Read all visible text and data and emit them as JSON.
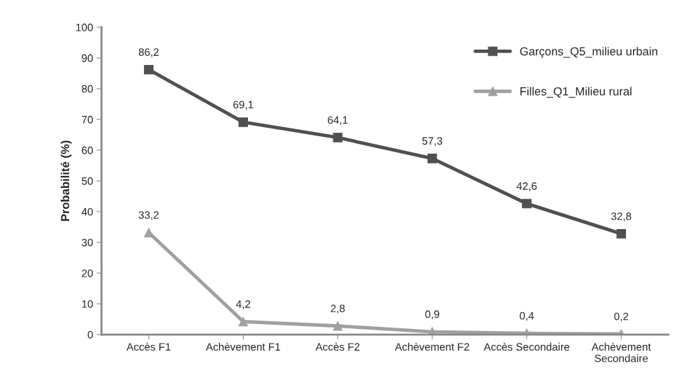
{
  "chart_data": {
    "type": "line",
    "ylabel": "Probabilité (%)",
    "categories": [
      "Accès F1",
      "Achèvement F1",
      "Accès F2",
      "Achèvement F2",
      "Accès Secondaire",
      "Achèvement\nSecondaire"
    ],
    "series": [
      {
        "name": "Garçons_Q5_milieu urbain",
        "color": "#505050",
        "marker": "square",
        "values": [
          86.2,
          69.1,
          64.1,
          57.3,
          42.6,
          32.8
        ],
        "value_labels": [
          "86,2",
          "69,1",
          "64,1",
          "57,3",
          "42,6",
          "32,8"
        ]
      },
      {
        "name": "Filles_Q1_Milieu rural",
        "color": "#a0a0a0",
        "marker": "triangle",
        "values": [
          33.2,
          4.2,
          2.8,
          0.9,
          0.4,
          0.2
        ],
        "value_labels": [
          "33,2",
          "4,2",
          "2,8",
          "0,9",
          "0,4",
          "0,2"
        ]
      }
    ],
    "ylim": [
      0,
      100
    ],
    "yticks": [
      0,
      10,
      20,
      30,
      40,
      50,
      60,
      70,
      80,
      90,
      100
    ],
    "grid": false,
    "legend": "top right",
    "line_style": "solid"
  }
}
